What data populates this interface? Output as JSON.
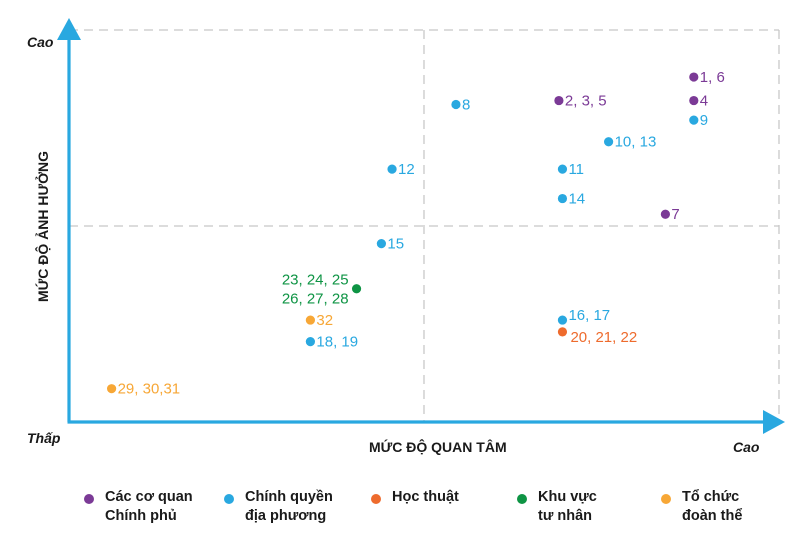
{
  "chart_data": {
    "type": "scatter",
    "title": "",
    "xlabel": "MỨC ĐỘ QUAN TÂM",
    "ylabel": "MỨC ĐỘ ẢNH HƯỞNG",
    "x_low_label": "Thấp",
    "x_high_label": "Cao",
    "y_high_label": "Cao",
    "xlim": [
      0,
      100
    ],
    "ylim": [
      0,
      100
    ],
    "quadrant_split": {
      "x": 50,
      "y": 50
    },
    "grid": "dashed quadrant lines",
    "legend_position": "bottom",
    "series": [
      {
        "name": "Các cơ quan Chính phủ",
        "name_lines": [
          "Các cơ quan",
          "Chính phủ"
        ],
        "color": "#7B3A96",
        "points": [
          {
            "label": "1, 6",
            "x": 88,
            "y": 88
          },
          {
            "label": "4",
            "x": 88,
            "y": 82
          },
          {
            "label": "2, 3, 5",
            "x": 69,
            "y": 82
          },
          {
            "label": "7",
            "x": 84,
            "y": 53
          }
        ]
      },
      {
        "name": "Chính quyền địa phương",
        "name_lines": [
          "Chính quyền",
          "địa phương"
        ],
        "color": "#29A8E0",
        "points": [
          {
            "label": "9",
            "x": 88,
            "y": 77
          },
          {
            "label": "8",
            "x": 54.5,
            "y": 81
          },
          {
            "label": "10, 13",
            "x": 76,
            "y": 71.5
          },
          {
            "label": "11",
            "x": 69.5,
            "y": 64.5
          },
          {
            "label": "12",
            "x": 45.5,
            "y": 64.5
          },
          {
            "label": "14",
            "x": 69.5,
            "y": 57
          },
          {
            "label": "15",
            "x": 44,
            "y": 45.5
          },
          {
            "label": "18, 19",
            "x": 34,
            "y": 20.5
          },
          {
            "label": "16, 17",
            "x": 69.5,
            "y": 26
          }
        ]
      },
      {
        "name": "Học thuật",
        "name_lines": [
          "Học thuật"
        ],
        "color": "#EE6B2D",
        "points": [
          {
            "label": "20, 21, 22",
            "x": 69.5,
            "y": 23
          }
        ]
      },
      {
        "name": "Khu vực tư nhân",
        "name_lines": [
          "Khu vực",
          "tư nhân"
        ],
        "color": "#0E9444",
        "points": [
          {
            "label": "23, 24, 25\n26, 27, 28",
            "label_lines": [
              "23, 24, 25",
              "26, 27, 28"
            ],
            "x": 40.5,
            "y": 34
          }
        ]
      },
      {
        "name": "Tổ chức đoàn thể",
        "name_lines": [
          "Tổ chức",
          "đoàn thể"
        ],
        "color": "#F7A736",
        "points": [
          {
            "label": "32",
            "x": 34,
            "y": 26
          },
          {
            "label": "29, 30,31",
            "x": 6,
            "y": 8.5
          }
        ]
      }
    ]
  },
  "colors": {
    "axis": "#29A8E0",
    "grid": "#C8C8C8",
    "text": "#1a1a1a"
  }
}
